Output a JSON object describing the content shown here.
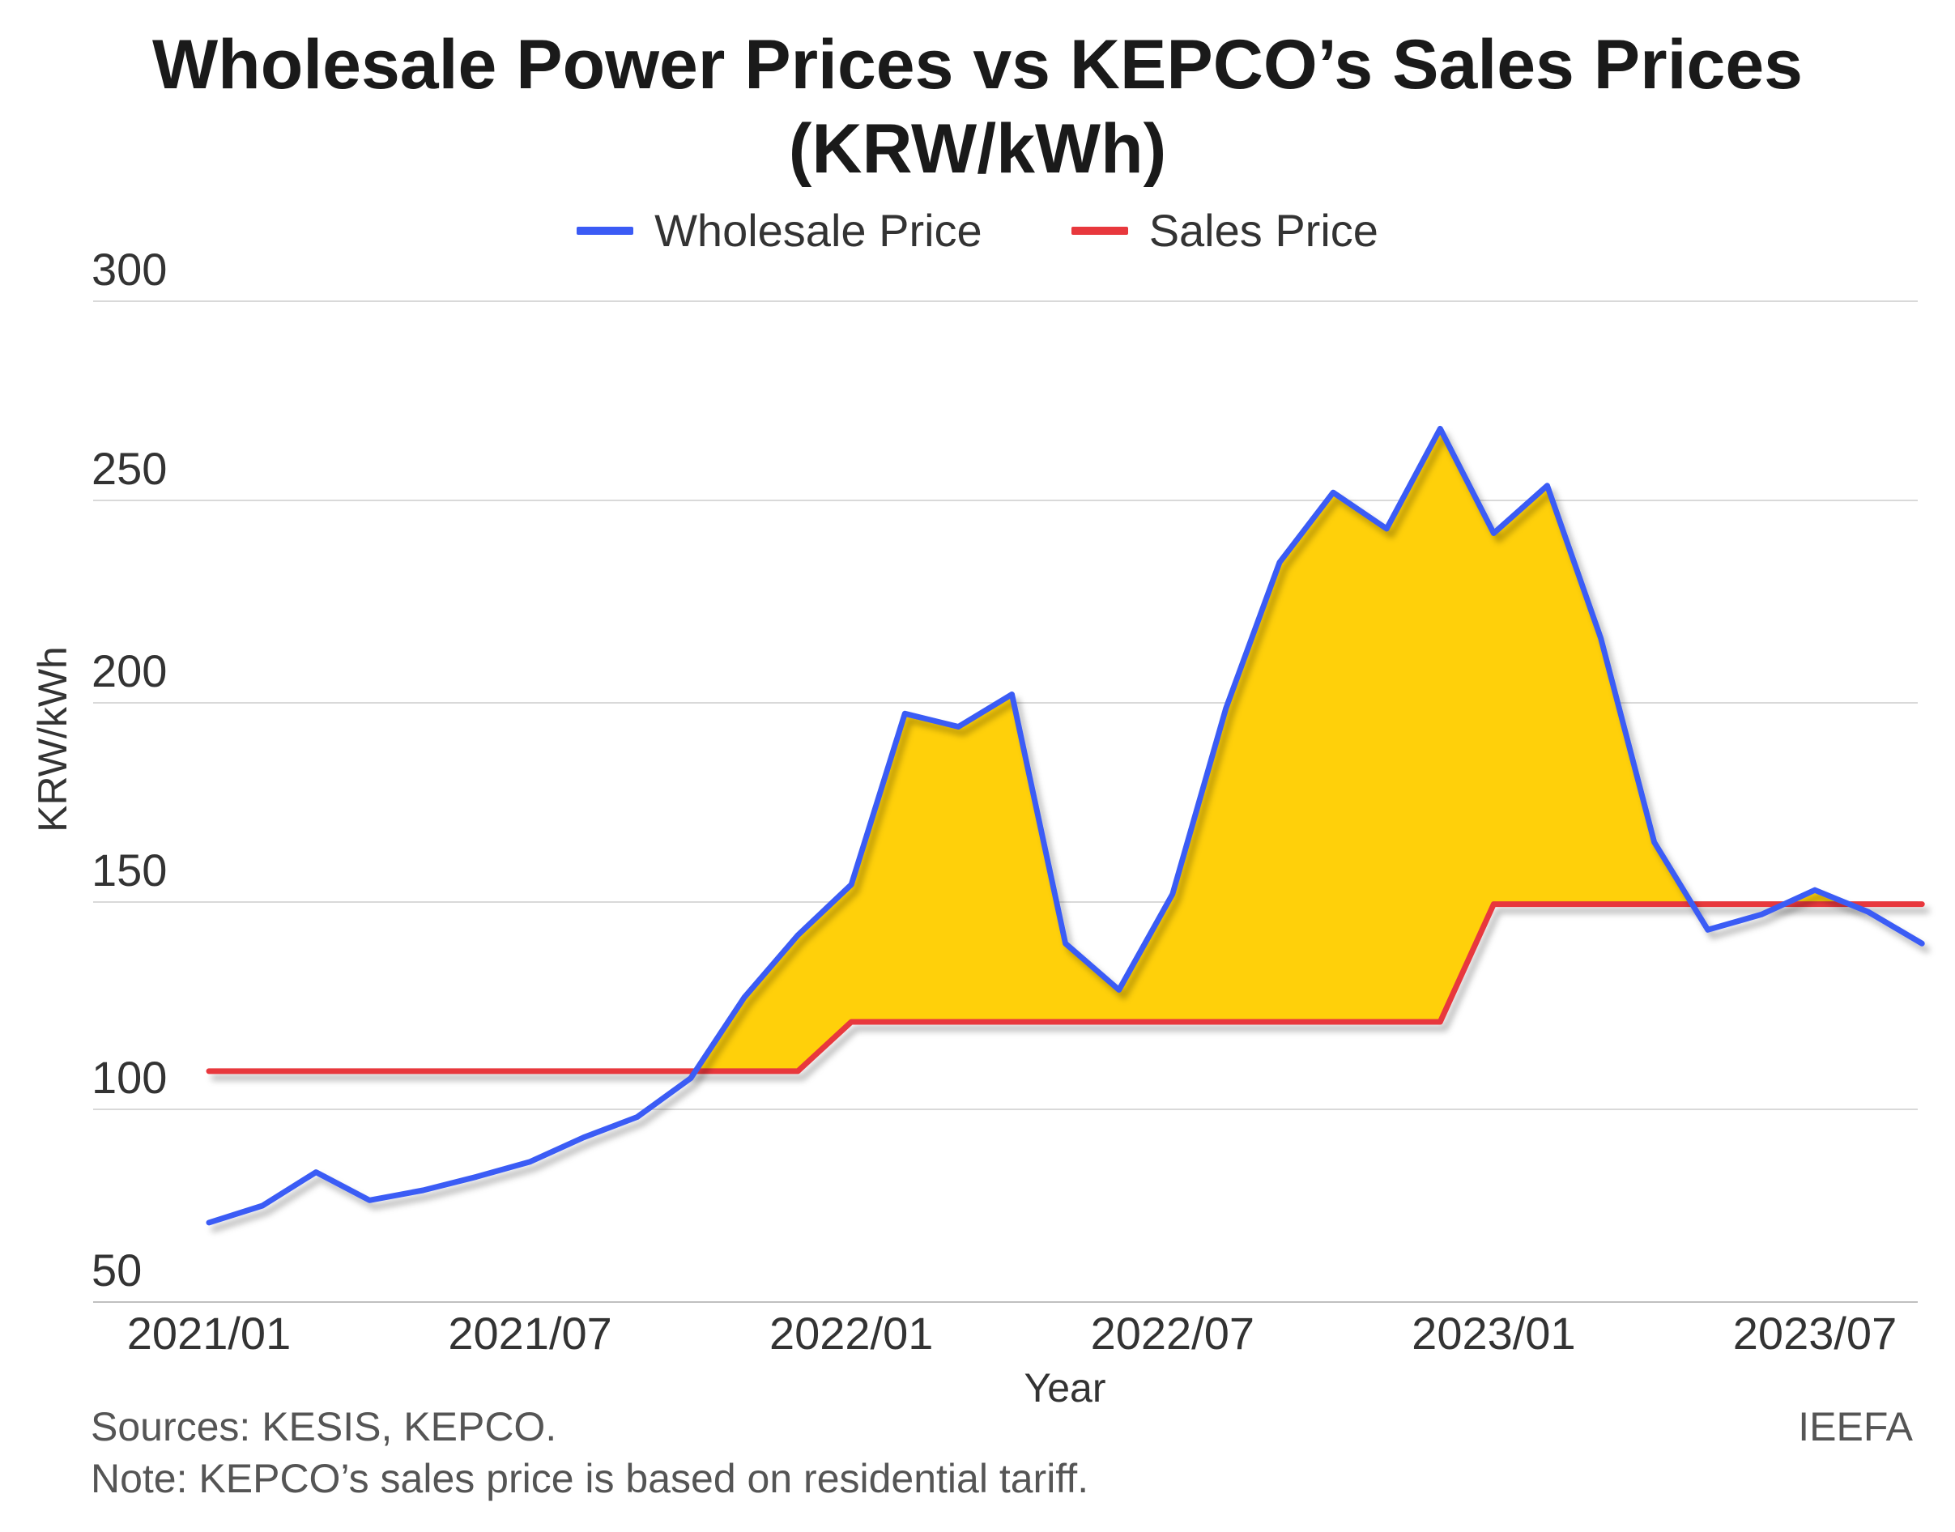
{
  "chart_data": {
    "type": "area",
    "title_line1": "Wholesale Power Prices vs KEPCO’s Sales Prices",
    "title_line2": "(KRW/kWh)",
    "xlabel": "Year",
    "ylabel": "KRW/kWh",
    "ylim": [
      50,
      300
    ],
    "yticks": [
      300,
      250,
      200,
      150,
      100,
      50
    ],
    "xticks": [
      "2021/01",
      "2021/07",
      "2022/01",
      "2022/07",
      "2023/01",
      "2023/07"
    ],
    "grid": true,
    "legend_position": "top-center",
    "fill_between": {
      "color": "#FFD00A",
      "between": [
        "Wholesale Price",
        "Sales Price"
      ]
    },
    "x": [
      "2021/01",
      "2021/02",
      "2021/03",
      "2021/04",
      "2021/05",
      "2021/06",
      "2021/07",
      "2021/08",
      "2021/09",
      "2021/10",
      "2021/11",
      "2021/12",
      "2022/01",
      "2022/02",
      "2022/03",
      "2022/04",
      "2022/05",
      "2022/06",
      "2022/07",
      "2022/08",
      "2022/09",
      "2022/10",
      "2022/11",
      "2022/12",
      "2023/01",
      "2023/02",
      "2023/03",
      "2023/04",
      "2023/05",
      "2023/06",
      "2023/07",
      "2023/08",
      "2023/09"
    ],
    "series": [
      {
        "name": "Wholesale Price",
        "color": "#3B5BF5",
        "values": [
          70.6,
          75,
          83.7,
          76.4,
          79,
          82.5,
          86.4,
          92.7,
          98,
          107.5,
          127,
          142,
          154.4,
          197.3,
          194,
          202.1,
          140,
          128.8,
          152,
          198.7,
          234.7,
          252,
          243,
          268,
          241.9,
          253.7,
          216,
          165,
          143.3,
          147,
          153,
          147.6,
          140
        ]
      },
      {
        "name": "Sales Price",
        "color": "#E8383D",
        "values": [
          109.2,
          109.2,
          109.2,
          109.2,
          109.2,
          109.2,
          109.2,
          109.2,
          109.2,
          109.2,
          109.2,
          109.2,
          121.1,
          121.1,
          121.1,
          121.1,
          121.1,
          121.1,
          121.1,
          121.1,
          121.1,
          121.1,
          121.1,
          121.1,
          149.5,
          149.5,
          149.5,
          149.5,
          149.5,
          149.5,
          149.5,
          149.5,
          149.5
        ]
      }
    ]
  },
  "footer": {
    "sources": "Sources: KESIS, KEPCO.",
    "note": "Note: KEPCO’s sales price is based on residential tariff.",
    "brand": "IEEFA"
  }
}
